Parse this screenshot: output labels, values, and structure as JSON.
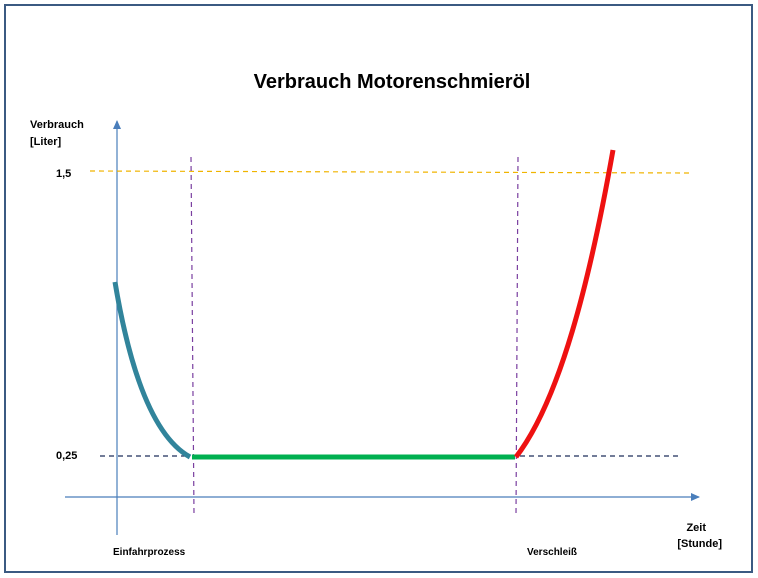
{
  "title": "Verbrauch Motorenschmieröl",
  "y_axis": {
    "label_lines": [
      "Verbrauch",
      "[Liter]"
    ],
    "ticks": [
      "1,5",
      "0,25"
    ]
  },
  "x_axis": {
    "label_lines": [
      "Zeit",
      "[Stunde]"
    ]
  },
  "phases": [
    "Einfahrprozess",
    "Verschleiß"
  ]
}
